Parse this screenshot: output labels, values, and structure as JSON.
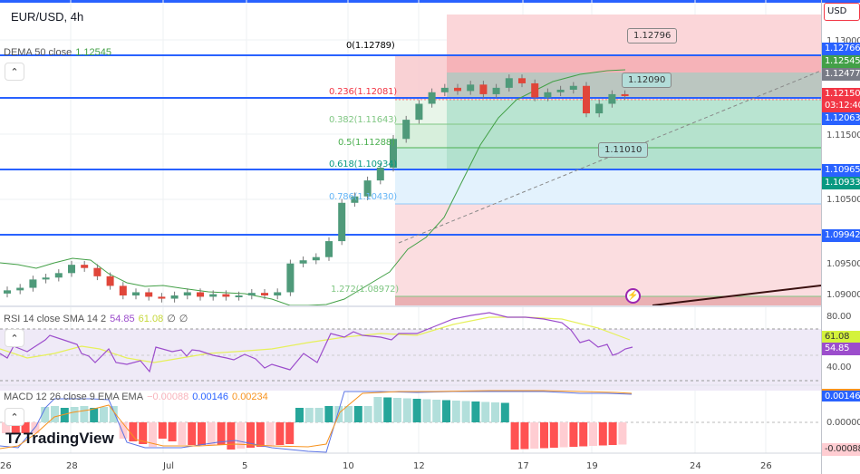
{
  "header": {
    "symbol_title": "EUR/USD, 4h",
    "currency": "USD"
  },
  "legends": {
    "dema": {
      "label": "DEMA 50 close",
      "value": "1.12545"
    },
    "rsi": {
      "label": "RSI 14 close SMA 14 2",
      "rsi_value": "54.85",
      "sma_value": "61.08",
      "extra1": "∅",
      "extra2": "∅"
    },
    "macd": {
      "label": "MACD 12 26 close 9 EMA EMA",
      "hist": "−0.00088",
      "macd": "0.00146",
      "signal": "0.00234"
    }
  },
  "fib_levels": [
    {
      "label": "0(1.12789)",
      "color": "#787b86"
    },
    {
      "label": "0.236(1.12081)",
      "color": "#f23645"
    },
    {
      "label": "0.382(1.11643)",
      "color": "#81c784"
    },
    {
      "label": "0.5(1.11288)",
      "color": "#4caf50"
    },
    {
      "label": "0.618(1.10934)",
      "color": "#089981"
    },
    {
      "label": "0.786(1.10430)",
      "color": "#64b5f6"
    },
    {
      "label": "1.272(1.08972)",
      "color": "#81c784"
    }
  ],
  "callouts": {
    "upper": "1.12796",
    "mid": "1.12090",
    "lower": "1.11010"
  },
  "price_axis": {
    "ticks": [
      "1.13000",
      "1.11500",
      "1.10500",
      "1.09500",
      "1.09000"
    ],
    "tags": [
      {
        "value": "1.12766",
        "color": "#2962ff"
      },
      {
        "value": "1.12545",
        "color": "#43a047"
      },
      {
        "value": "1.12477",
        "color": "#787b86"
      },
      {
        "value": "1.12150",
        "color": "#f23645"
      },
      {
        "value": "03:12:40",
        "color": "#f23645"
      },
      {
        "value": "1.12063",
        "color": "#2962ff"
      },
      {
        "value": "1.10965",
        "color": "#2962ff"
      },
      {
        "value": "1.10933",
        "color": "#089981"
      },
      {
        "value": "1.09942",
        "color": "#2962ff"
      }
    ]
  },
  "rsi_axis": {
    "ticks": [
      "80.00",
      "40.00"
    ],
    "tags": [
      {
        "value": "61.08",
        "color": "#d4f23c",
        "text": "#333"
      },
      {
        "value": "54.85",
        "color": "#9c4dcc",
        "text": "#fff"
      }
    ]
  },
  "macd_axis": {
    "ticks": [
      "0.00000"
    ],
    "tags": [
      {
        "value": "0.00146",
        "color": "#2962ff",
        "text": "#fff"
      },
      {
        "value": "-0.00088",
        "color": "#ffcdd2",
        "text": "#333"
      }
    ]
  },
  "time_axis": [
    "26",
    "28",
    "Jul",
    "5",
    "10",
    "12",
    "17",
    "19",
    "24",
    "26"
  ],
  "branding": {
    "logo_text": "TradingView"
  },
  "chart_data": {
    "type": "candlestick",
    "title": "EUR/USD, 4h",
    "symbol": "EUR/USD",
    "interval": "4h",
    "x_ticks": [
      "26",
      "28",
      "Jul",
      "5",
      "10",
      "12",
      "17",
      "19",
      "24",
      "26"
    ],
    "y_ticks": [
      1.09,
      1.095,
      1.105,
      1.115,
      1.13
    ],
    "ylim": [
      1.0885,
      1.1315
    ],
    "last_price": 1.1215,
    "countdown": "03:12:40",
    "horizontal_lines": [
      1.12766,
      1.12063,
      1.10965,
      1.09942
    ],
    "fibonacci": {
      "0": 1.12789,
      "0.236": 1.12081,
      "0.382": 1.11643,
      "0.5": 1.11288,
      "0.618": 1.10934,
      "0.786": 1.1043,
      "1.272": 1.08972
    },
    "callouts": [
      1.12796,
      1.1209,
      1.1101
    ],
    "indicators": {
      "DEMA_50": 1.12545,
      "RSI_14": 54.85,
      "RSI_SMA_14": 61.08,
      "MACD": 0.00146,
      "MACD_signal": 0.00234,
      "MACD_hist": -0.00088
    },
    "approx_closes": [
      1.0908,
      1.0912,
      1.0925,
      1.0928,
      1.0935,
      1.0948,
      1.0943,
      1.093,
      1.0915,
      1.09,
      1.0905,
      1.0898,
      1.0895,
      1.09,
      1.0905,
      1.0898,
      1.0902,
      1.0898,
      1.09,
      1.0904,
      1.09,
      1.0905,
      1.095,
      1.0955,
      1.096,
      1.0985,
      1.1045,
      1.1055,
      1.108,
      1.11,
      1.1145,
      1.1175,
      1.12,
      1.1218,
      1.1225,
      1.122,
      1.123,
      1.1215,
      1.1225,
      1.124,
      1.1232,
      1.121,
      1.1218,
      1.1222,
      1.1228,
      1.1185,
      1.12,
      1.1215,
      1.1212
    ]
  }
}
